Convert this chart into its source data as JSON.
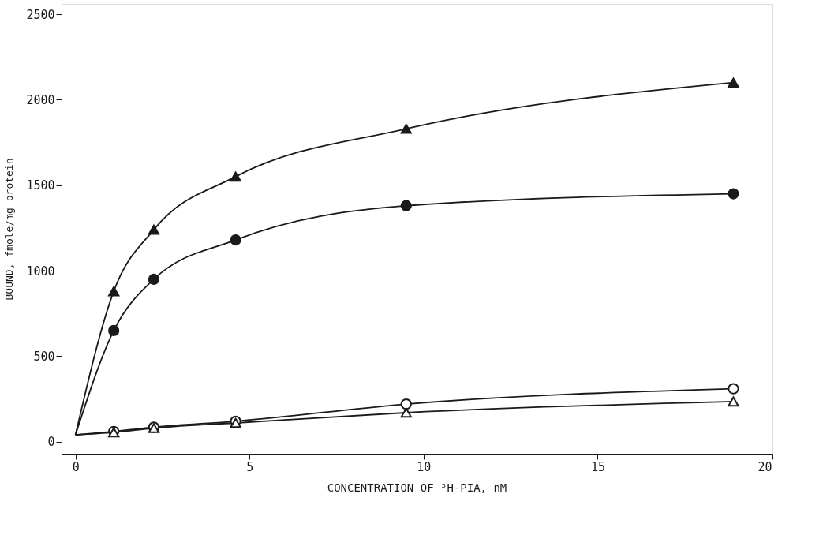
{
  "chart_data": {
    "type": "scatter",
    "xlabel": "CONCENTRATION OF ³H-PIA, nM",
    "ylabel": "BOUND, fmole/mg protein",
    "xlim": [
      -0.4,
      20
    ],
    "ylim": [
      -70,
      2560
    ],
    "xticks": [
      0,
      5,
      10,
      15,
      20
    ],
    "yticks": [
      0,
      500,
      1000,
      1500,
      2000,
      2500
    ],
    "grid": false,
    "series": [
      {
        "type": "line",
        "color": "#1a1a1a",
        "marker": "none",
        "x": [
          0,
          1.1,
          2.25,
          4.6,
          9.5,
          18.9
        ],
        "values": [
          40,
          880,
          1240,
          1550,
          1830,
          2100
        ]
      },
      {
        "type": "line",
        "color": "#1a1a1a",
        "marker": "none",
        "x": [
          0,
          1.1,
          2.25,
          4.6,
          9.5,
          18.9
        ],
        "values": [
          40,
          650,
          950,
          1180,
          1380,
          1450
        ]
      },
      {
        "type": "line",
        "color": "#1a1a1a",
        "marker": "none",
        "x": [
          0,
          1.1,
          2.25,
          4.6,
          9.5,
          18.9
        ],
        "values": [
          40,
          60,
          85,
          120,
          220,
          310
        ]
      },
      {
        "type": "line",
        "color": "#1a1a1a",
        "marker": "none",
        "x": [
          0,
          1.1,
          2.25,
          4.6,
          9.5,
          18.9
        ],
        "values": [
          40,
          55,
          80,
          110,
          170,
          235
        ]
      },
      {
        "color": "#1a1a1a",
        "marker": "triangle",
        "x": [
          1.1,
          2.25,
          4.6,
          9.5,
          18.9
        ],
        "values": [
          880,
          1240,
          1550,
          1830,
          2100
        ]
      },
      {
        "color": "#1a1a1a",
        "marker": "circle",
        "x": [
          1.1,
          2.25,
          4.6,
          9.5,
          18.9
        ],
        "values": [
          650,
          950,
          1180,
          1380,
          1450
        ]
      },
      {
        "color": "#ffffff",
        "marker": "circle",
        "x": [
          1.1,
          2.25,
          4.6,
          9.5,
          18.9
        ],
        "values": [
          60,
          85,
          120,
          220,
          310
        ]
      },
      {
        "color": "#ffffff",
        "marker": "triangle",
        "x": [
          1.1,
          2.25,
          4.6,
          9.5,
          18.9
        ],
        "values": [
          55,
          80,
          110,
          170,
          235
        ]
      }
    ]
  }
}
